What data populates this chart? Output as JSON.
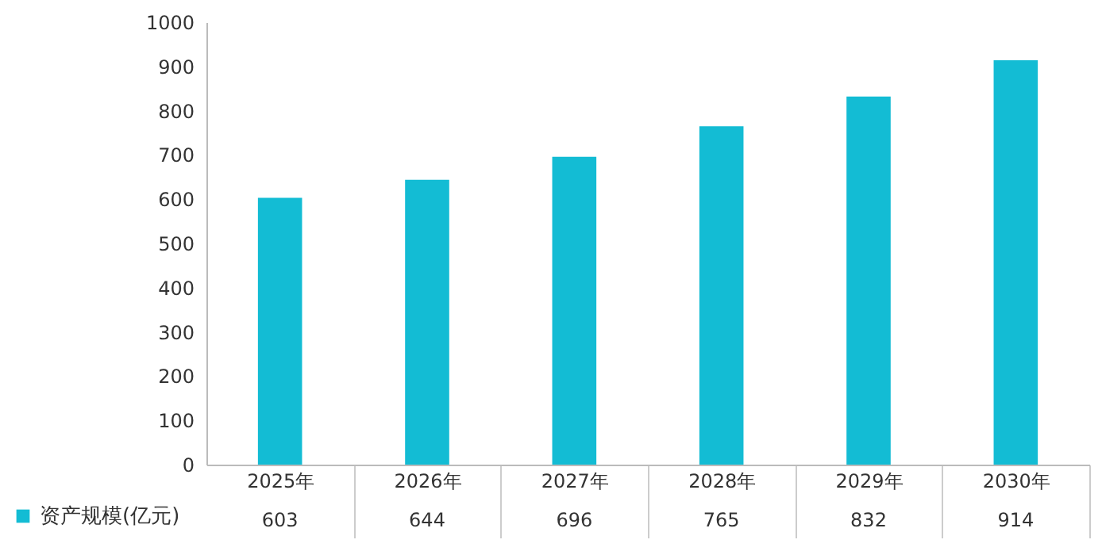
{
  "chart_data": {
    "type": "bar",
    "categories": [
      "2025年",
      "2026年",
      "2027年",
      "2028年",
      "2029年",
      "2030年"
    ],
    "series": [
      {
        "name": "资产规模(亿元)",
        "color": "#13bcd4",
        "values": [
          603,
          644,
          696,
          765,
          832,
          914
        ]
      }
    ],
    "ylim": [
      0,
      1000
    ],
    "yticks": [
      0,
      100,
      200,
      300,
      400,
      500,
      600,
      700,
      800,
      900,
      1000
    ],
    "grid": false,
    "legend": "bottom left",
    "data_labels": true
  }
}
